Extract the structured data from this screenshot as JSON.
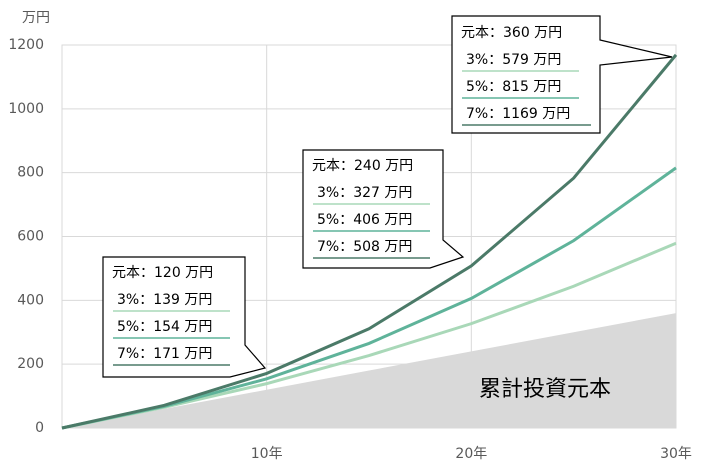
{
  "chart_data": {
    "type": "line",
    "y_unit": "万円",
    "x": [
      0,
      5,
      10,
      15,
      20,
      25,
      30
    ],
    "xlim": [
      0,
      30
    ],
    "xticks": [
      {
        "value": 10,
        "label": "10年"
      },
      {
        "value": 20,
        "label": "20年"
      },
      {
        "value": 30,
        "label": "30年"
      }
    ],
    "ylim": [
      0,
      1200
    ],
    "yticks": [
      0,
      200,
      400,
      600,
      800,
      1000,
      1200
    ],
    "grid": true,
    "series": [
      {
        "name": "累計投資元本",
        "kind": "area",
        "color": "#d9d9d9",
        "values": [
          0,
          60,
          120,
          180,
          240,
          300,
          360
        ]
      },
      {
        "name": "3%",
        "color": "#a9d8b8",
        "values": [
          0,
          65,
          139,
          227,
          327,
          444,
          579
        ]
      },
      {
        "name": "5%",
        "color": "#5fb39a",
        "values": [
          0,
          68,
          154,
          265,
          406,
          587,
          815
        ]
      },
      {
        "name": "7%",
        "color": "#4b7a68",
        "values": [
          0,
          71,
          171,
          311,
          508,
          783,
          1169
        ]
      }
    ],
    "annotations": [
      {
        "lines": [
          "元本：120 万円",
          "3%：139 万円",
          "5%：154 万円",
          "7%：171 万円"
        ]
      },
      {
        "lines": [
          "元本：240 万円",
          "3%：327 万円",
          "5%：406 万円",
          "7%：508 万円"
        ]
      },
      {
        "lines": [
          "元本：360 万円",
          "3%：579 万円",
          "5%：815 万円",
          "7%：1169 万円"
        ]
      }
    ]
  }
}
